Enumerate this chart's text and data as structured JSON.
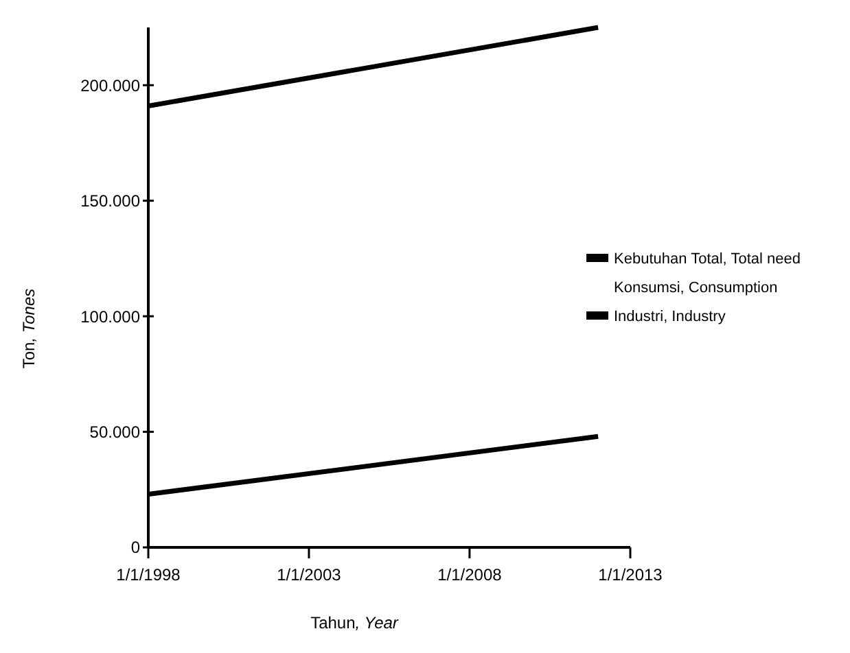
{
  "chart_data": {
    "type": "line",
    "xlabel": "Tahun, Year",
    "ylabel": "Ton, Tones",
    "x": [
      "1998-01-01",
      "2012-01-01"
    ],
    "xlim": [
      "1998-01-01",
      "2013-01-01"
    ],
    "xticks": [
      {
        "value": "1998-01-01",
        "label": "1/1/1998"
      },
      {
        "value": "2003-01-01",
        "label": "1/1/2003"
      },
      {
        "value": "2008-01-01",
        "label": "1/1/2008"
      },
      {
        "value": "2013-01-01",
        "label": "1/1/2013"
      }
    ],
    "ylim": [
      0,
      225000
    ],
    "yticks": [
      {
        "value": 0,
        "label": "0"
      },
      {
        "value": 50000,
        "label": "50.000"
      },
      {
        "value": 100000,
        "label": "100.000"
      },
      {
        "value": 150000,
        "label": "150.000"
      },
      {
        "value": 200000,
        "label": "200.000"
      }
    ],
    "series": [
      {
        "name": "Kebutuhan Total, Total need",
        "color": "#000000",
        "values": [
          191000,
          225000
        ]
      },
      {
        "name": "Konsumsi, Consumption",
        "values": [
          null,
          null
        ]
      },
      {
        "name": "Industri, Industry",
        "color": "#000000",
        "values": [
          23000,
          48000
        ]
      }
    ],
    "grid": false,
    "legend": "right",
    "marker": "none",
    "line_style": "solid"
  }
}
